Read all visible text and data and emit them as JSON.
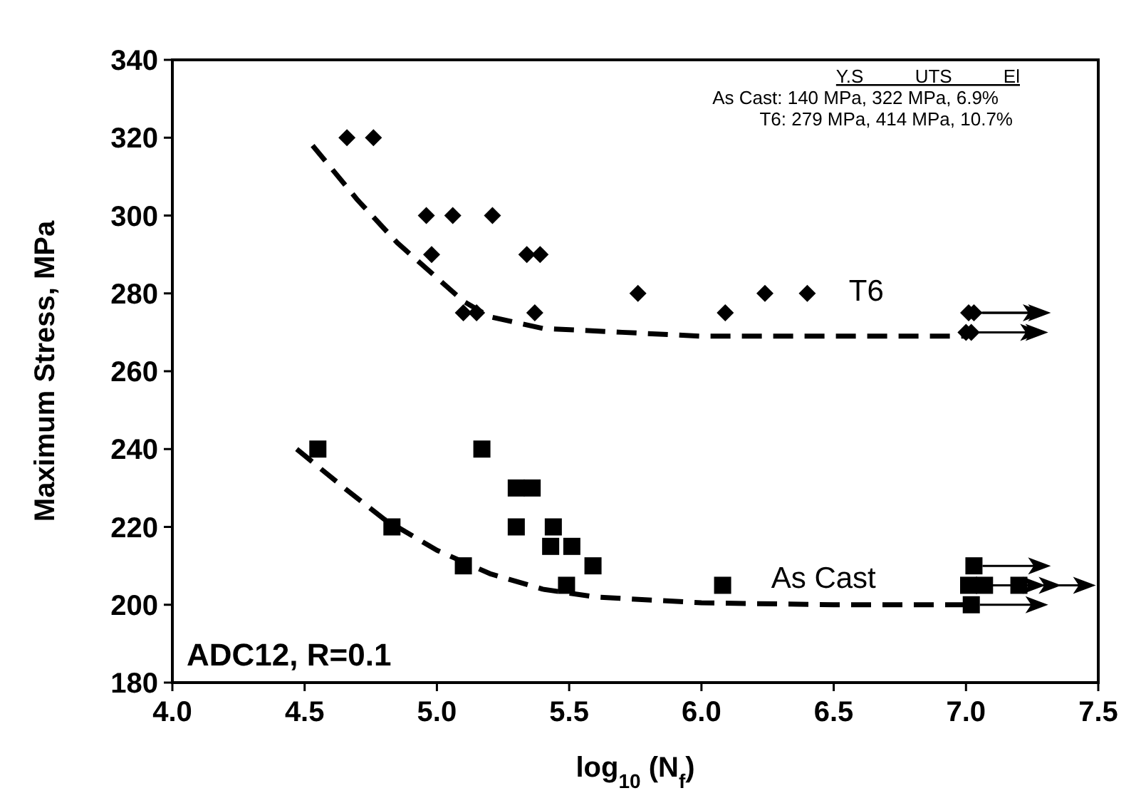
{
  "chart_data": {
    "type": "scatter",
    "xlabel": "log$_{10}$ (N$_{f}$)",
    "ylabel": "Maximum Stress, MPa",
    "xlim": [
      4.0,
      7.5
    ],
    "xticks": [
      {
        "value": 4.0,
        "label": "4.0"
      },
      {
        "value": 4.5,
        "label": "4.5"
      },
      {
        "value": 5.0,
        "label": "5.0"
      },
      {
        "value": 5.5,
        "label": "5.5"
      },
      {
        "value": 6.0,
        "label": "6.0"
      },
      {
        "value": 6.5,
        "label": "6.5"
      },
      {
        "value": 7.0,
        "label": "7.0"
      },
      {
        "value": 7.5,
        "label": "7.5"
      }
    ],
    "ylim": [
      180,
      340
    ],
    "yticks": [
      180,
      200,
      220,
      240,
      260,
      280,
      300,
      320,
      340
    ],
    "grid": false,
    "series": [
      {
        "name": "T6",
        "marker": "diamond",
        "color": "#000000",
        "x": [
          4.66,
          4.76,
          4.96,
          5.06,
          5.21,
          4.98,
          5.34,
          5.39,
          5.1,
          5.15,
          5.37,
          5.76,
          6.09,
          6.24,
          6.4,
          7.03,
          7.01,
          7.0,
          7.02
        ],
        "values": [
          320,
          320,
          300,
          300,
          300,
          290,
          290,
          290,
          275,
          275,
          275,
          280,
          275,
          280,
          280,
          275,
          275,
          270,
          270
        ]
      },
      {
        "name": "As Cast",
        "marker": "square",
        "color": "#000000",
        "x": [
          4.55,
          5.17,
          5.3,
          5.36,
          4.83,
          5.3,
          5.44,
          5.43,
          5.51,
          5.1,
          5.59,
          5.49,
          6.08,
          7.03,
          7.01,
          7.07,
          7.2,
          7.02
        ],
        "values": [
          240,
          240,
          230,
          230,
          220,
          220,
          220,
          215,
          215,
          210,
          210,
          205,
          205,
          210,
          205,
          205,
          205,
          200
        ]
      },
      {
        "type": "line",
        "line_style": "dashed",
        "color": "#000000",
        "x": [
          4.53,
          4.7,
          4.85,
          5.0,
          5.1,
          5.2,
          5.4,
          5.7,
          6.0,
          7.0
        ],
        "values": [
          318,
          304,
          293,
          284,
          278,
          274,
          271,
          270,
          269,
          269
        ]
      },
      {
        "type": "line",
        "line_style": "dashed",
        "color": "#000000",
        "x": [
          4.47,
          4.65,
          4.8,
          5.0,
          5.2,
          5.4,
          5.6,
          6.0,
          6.5,
          7.0
        ],
        "values": [
          240,
          230,
          222,
          214,
          208,
          204,
          202,
          200.5,
          200,
          200
        ]
      }
    ],
    "annotations": [
      "ADC12, R=0.1",
      "Y.S          UTS          El",
      "As Cast: 140 MPa, 322 MPa,  6.9%",
      "T6: 279 MPa, 414 MPa, 10.7%"
    ]
  }
}
